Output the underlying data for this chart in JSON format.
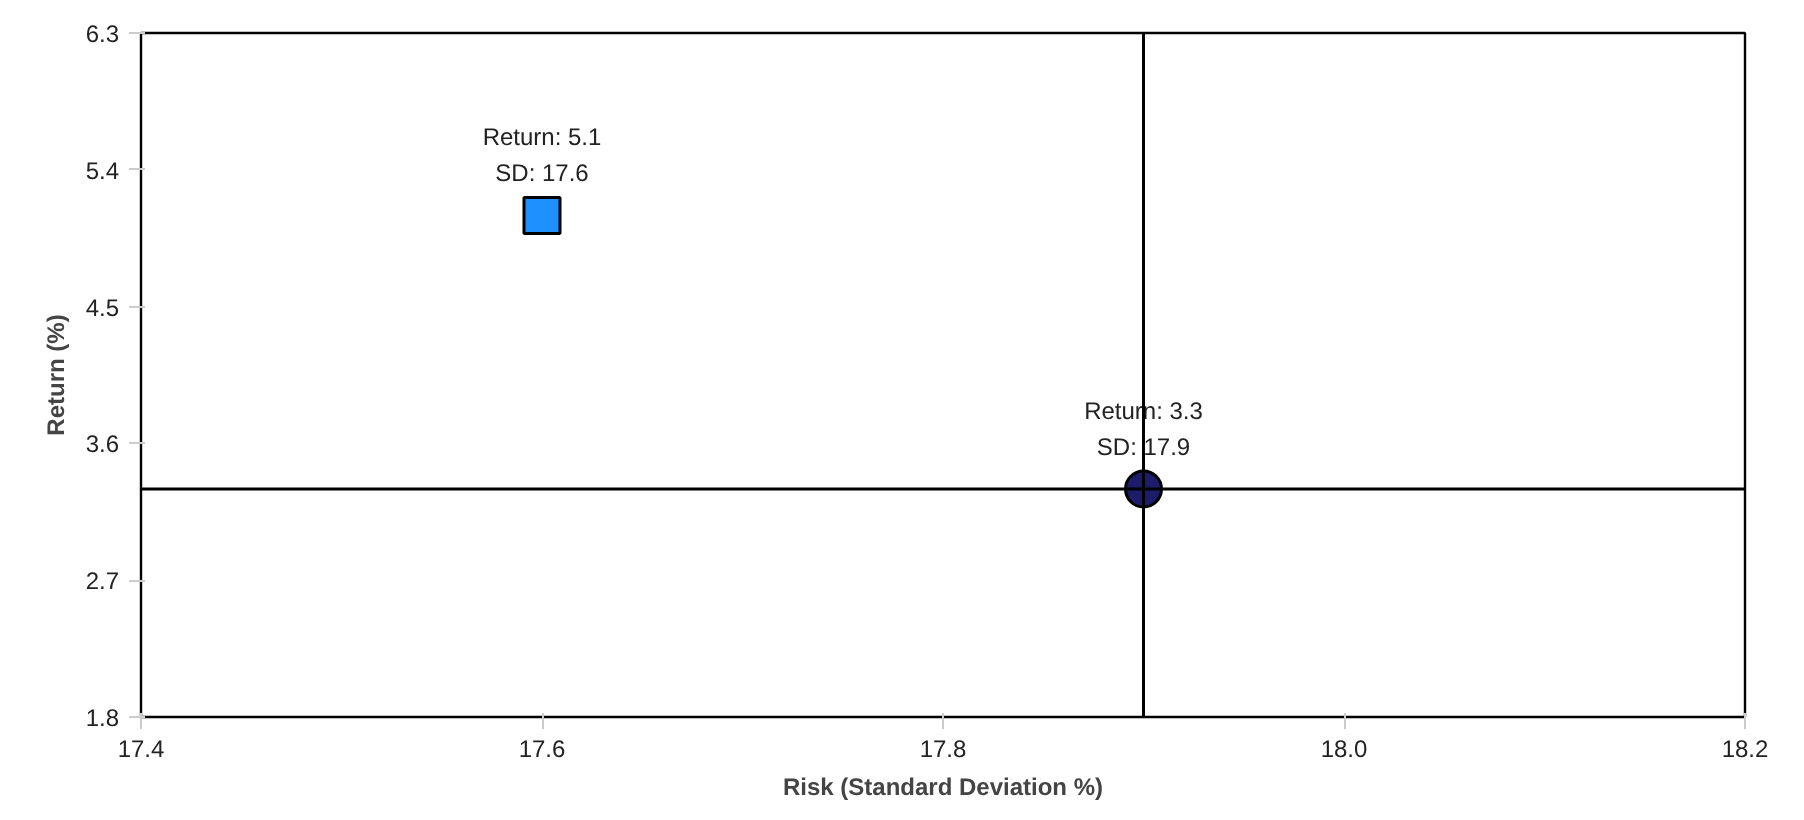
{
  "chart_data": {
    "type": "scatter",
    "xlabel": "Risk (Standard Deviation %)",
    "ylabel": "Return (%)",
    "xlim": [
      17.4,
      18.2
    ],
    "xticks": [
      {
        "value": 17.4,
        "label": "17.4"
      },
      {
        "value": 17.6,
        "label": "17.6"
      },
      {
        "value": 17.8,
        "label": "17.8"
      },
      {
        "value": 18.0,
        "label": "18.0"
      },
      {
        "value": 18.2,
        "label": "18.2"
      }
    ],
    "ylim": [
      1.8,
      6.3
    ],
    "yticks": [
      1.8,
      2.7,
      3.6,
      4.5,
      5.4,
      6.3
    ],
    "grid": false,
    "series": [
      {
        "color": "#1e90ff",
        "marker": "square",
        "x": [
          17.6
        ],
        "values": [
          5.1
        ],
        "value_labels": [
          "Return: 5.1\nSD: 17.6"
        ]
      },
      {
        "color": "#1c1c6b",
        "marker": "circle",
        "x": [
          17.9
        ],
        "values": [
          3.3
        ],
        "value_labels": [
          "Return: 3.3\nSD: 17.9"
        ]
      }
    ],
    "ref_lines": [
      {
        "axis": "x",
        "value": 17.9,
        "color": "#000000"
      },
      {
        "axis": "y",
        "value": 3.3,
        "color": "#000000"
      }
    ]
  }
}
